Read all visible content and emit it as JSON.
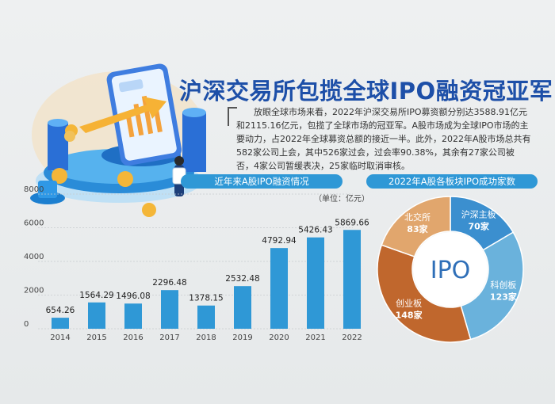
{
  "title": "沪深交易所包揽全球IPO融资冠亚军",
  "intro": "放眼全球市场来看，2022年沪深交易所IPO募资额分别达3588.91亿元和2115.16亿元，包揽了全球市场的冠亚军。A股市场成为全球IPO市场的主要动力，占2022年全球募资总额的接近一半。此外，2022年A股市场总共有582家公司上会，其中526家过会，过会率90.38%，其余有27家公司被否，4家公司暂缓表决，25家临时取消审核。",
  "colors": {
    "accent": "#1d4fa8",
    "bar": "#2f98d6",
    "header": "#2f98d6"
  },
  "chart_data": [
    {
      "type": "bar",
      "title": "近年来A股IPO融资情况",
      "unit": "（单位：亿元）",
      "categories": [
        "2014",
        "2015",
        "2016",
        "2017",
        "2018",
        "2019",
        "2020",
        "2021",
        "2022"
      ],
      "values": [
        654.26,
        1564.29,
        1496.08,
        2296.48,
        1378.15,
        2532.48,
        4792.94,
        5426.43,
        5869.66
      ],
      "value_labels": [
        "654.26",
        "1564.29",
        "1496.08",
        "2296.48",
        "1378.15",
        "2532.48",
        "4792.94",
        "5426.43",
        "5869.66"
      ],
      "ylim": [
        0,
        8000
      ],
      "yticks": [
        "0",
        "2000",
        "4000",
        "6000",
        "8000"
      ],
      "grid": true
    },
    {
      "type": "pie",
      "title": "2022年A股各板块IPO成功家数",
      "center_label": "IPO",
      "slices": [
        {
          "label": "沪深主板",
          "value_label": "70家",
          "value": 70,
          "color": "#3b8fcf"
        },
        {
          "label": "科创板",
          "value_label": "123家",
          "value": 123,
          "color": "#6ab2dc"
        },
        {
          "label": "创业板",
          "value_label": "148家",
          "value": 148,
          "color": "#c0672d"
        },
        {
          "label": "北交所",
          "value_label": "83家",
          "value": 83,
          "color": "#e1a66d"
        }
      ]
    }
  ]
}
